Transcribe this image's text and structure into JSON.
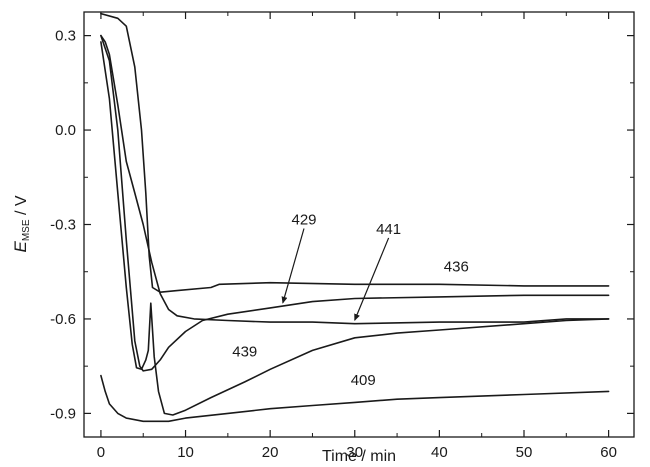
{
  "chart_data": {
    "type": "line",
    "xlabel": "Time / min",
    "ylabel": {
      "main": "E",
      "subscript": "MSE",
      "unit": " / V"
    },
    "xlim": [
      -2,
      63
    ],
    "ylim": [
      -0.975,
      0.375
    ],
    "xticks": [
      {
        "value": 0,
        "label": "0"
      },
      {
        "value": 10,
        "label": "10"
      },
      {
        "value": 20,
        "label": "20"
      },
      {
        "value": 30,
        "label": "30"
      },
      {
        "value": 40,
        "label": "40"
      },
      {
        "value": 50,
        "label": "50"
      },
      {
        "value": 60,
        "label": "60"
      }
    ],
    "yticks": [
      {
        "value": 0.3,
        "label": "0.3"
      },
      {
        "value": 0.0,
        "label": "0.0"
      },
      {
        "value": -0.3,
        "label": "-0.3"
      },
      {
        "value": -0.6,
        "label": "-0.6"
      },
      {
        "value": -0.9,
        "label": "-0.9"
      }
    ],
    "series": [
      {
        "name": "436",
        "points": [
          [
            0,
            0.37
          ],
          [
            2,
            0.355
          ],
          [
            3,
            0.33
          ],
          [
            4,
            0.2
          ],
          [
            4.8,
            0.0
          ],
          [
            5.3,
            -0.2
          ],
          [
            5.7,
            -0.4
          ],
          [
            6.1,
            -0.5
          ],
          [
            7,
            -0.515
          ],
          [
            9,
            -0.51
          ],
          [
            13,
            -0.5
          ],
          [
            14,
            -0.49
          ],
          [
            20,
            -0.485
          ],
          [
            30,
            -0.49
          ],
          [
            40,
            -0.49
          ],
          [
            50,
            -0.495
          ],
          [
            60,
            -0.495
          ]
        ]
      },
      {
        "name": "429",
        "points": [
          [
            0,
            0.3
          ],
          [
            1,
            0.22
          ],
          [
            2,
            0.0
          ],
          [
            3,
            -0.35
          ],
          [
            4,
            -0.67
          ],
          [
            4.6,
            -0.75
          ],
          [
            5,
            -0.765
          ],
          [
            6,
            -0.76
          ],
          [
            7,
            -0.73
          ],
          [
            8,
            -0.69
          ],
          [
            10,
            -0.64
          ],
          [
            12,
            -0.605
          ],
          [
            15,
            -0.585
          ],
          [
            20,
            -0.565
          ],
          [
            25,
            -0.545
          ],
          [
            30,
            -0.535
          ],
          [
            40,
            -0.53
          ],
          [
            50,
            -0.525
          ],
          [
            60,
            -0.525
          ]
        ]
      },
      {
        "name": "441",
        "points": [
          [
            0,
            0.3
          ],
          [
            0.5,
            0.28
          ],
          [
            1,
            0.24
          ],
          [
            2,
            0.08
          ],
          [
            3,
            -0.1
          ],
          [
            4,
            -0.2
          ],
          [
            5,
            -0.3
          ],
          [
            6,
            -0.42
          ],
          [
            7,
            -0.52
          ],
          [
            8,
            -0.57
          ],
          [
            9,
            -0.59
          ],
          [
            11,
            -0.6
          ],
          [
            15,
            -0.605
          ],
          [
            20,
            -0.61
          ],
          [
            25,
            -0.61
          ],
          [
            30,
            -0.615
          ],
          [
            40,
            -0.61
          ],
          [
            50,
            -0.61
          ],
          [
            55,
            -0.6
          ],
          [
            60,
            -0.6
          ]
        ]
      },
      {
        "name": "439",
        "points": [
          [
            0,
            0.28
          ],
          [
            1,
            0.1
          ],
          [
            2,
            -0.2
          ],
          [
            3,
            -0.5
          ],
          [
            3.7,
            -0.68
          ],
          [
            4.2,
            -0.755
          ],
          [
            4.8,
            -0.76
          ],
          [
            5.3,
            -0.73
          ],
          [
            5.6,
            -0.7
          ],
          [
            5.9,
            -0.55
          ],
          [
            6.3,
            -0.72
          ],
          [
            6.8,
            -0.83
          ],
          [
            7.5,
            -0.9
          ],
          [
            8.5,
            -0.905
          ],
          [
            10,
            -0.89
          ],
          [
            13,
            -0.85
          ],
          [
            17,
            -0.8
          ],
          [
            20,
            -0.76
          ],
          [
            25,
            -0.7
          ],
          [
            30,
            -0.66
          ],
          [
            35,
            -0.645
          ],
          [
            40,
            -0.635
          ],
          [
            50,
            -0.615
          ],
          [
            55,
            -0.605
          ],
          [
            60,
            -0.6
          ]
        ]
      },
      {
        "name": "409",
        "points": [
          [
            0,
            -0.78
          ],
          [
            0.5,
            -0.83
          ],
          [
            1,
            -0.87
          ],
          [
            2,
            -0.9
          ],
          [
            3,
            -0.915
          ],
          [
            5,
            -0.925
          ],
          [
            8,
            -0.925
          ],
          [
            10,
            -0.915
          ],
          [
            15,
            -0.9
          ],
          [
            20,
            -0.885
          ],
          [
            25,
            -0.875
          ],
          [
            30,
            -0.865
          ],
          [
            35,
            -0.855
          ],
          [
            40,
            -0.85
          ],
          [
            50,
            -0.84
          ],
          [
            60,
            -0.83
          ]
        ]
      }
    ],
    "annotations": [
      {
        "text": "436",
        "x": 42,
        "y": -0.45,
        "has_arrow": false
      },
      {
        "text": "429",
        "x": 24,
        "y": -0.3,
        "has_arrow": true,
        "arrow_to": [
          21.5,
          -0.555
        ]
      },
      {
        "text": "441",
        "x": 34,
        "y": -0.33,
        "has_arrow": true,
        "arrow_to": [
          30,
          -0.61
        ]
      },
      {
        "text": "439",
        "x": 17,
        "y": -0.72,
        "has_arrow": false
      },
      {
        "text": "409",
        "x": 31,
        "y": -0.81,
        "has_arrow": false
      }
    ],
    "grid": false,
    "legend": "none",
    "line_color": "#1a1a1a"
  }
}
